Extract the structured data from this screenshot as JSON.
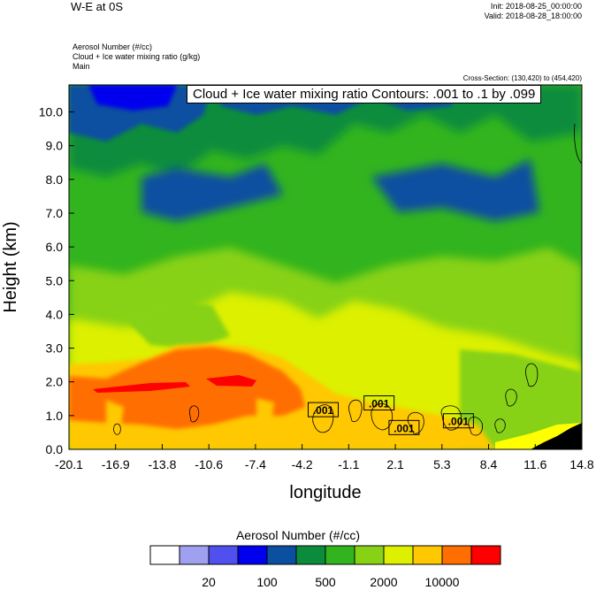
{
  "header": {
    "title": "W-E at 0S",
    "init": "Init: 2018-08-25_00:00:00",
    "valid": "Valid: 2018-08-28_18:00:00",
    "field_lines": [
      "Aerosol Number   (#/cc)",
      "Cloud + Ice water mixing ratio   (g/kg)",
      "Main"
    ],
    "cross_section": "Cross-Section: (130,420) to (454,420)",
    "contour_label": "Cloud + Ice water mixing ratio Contours: .001 to .1 by .099"
  },
  "chart_data": {
    "type": "heatmap",
    "xlabel": "longitude",
    "ylabel": "Height (km)",
    "xlim": [
      -20.1,
      14.8
    ],
    "ylim": [
      0.0,
      10.8
    ],
    "x_ticks": [
      "-20.1",
      "-16.9",
      "-13.8",
      "-10.6",
      "-7.4",
      "-4.2",
      "-1.1",
      "2.1",
      "5.3",
      "8.4",
      "11.6",
      "14.8"
    ],
    "y_ticks": [
      "0.0",
      "1.0",
      "2.0",
      "3.0",
      "4.0",
      "5.0",
      "6.0",
      "7.0",
      "8.0",
      "9.0",
      "10.0"
    ],
    "y_tick_values": [
      0,
      1,
      2,
      3,
      4,
      5,
      6,
      7,
      8,
      9,
      10
    ],
    "colorbar": {
      "title": "Aerosol Number  (#/cc)",
      "colors": [
        "#ffffff",
        "#a0a0f0",
        "#5050ee",
        "#0000ee",
        "#0a4fa0",
        "#0a8c3c",
        "#32b41e",
        "#87d214",
        "#dcf000",
        "#ffc800",
        "#ff6e00",
        "#ff0000"
      ],
      "labels": [
        "20",
        "100",
        "500",
        "2000",
        "10000"
      ],
      "label_boundary_index": [
        2,
        4,
        6,
        8,
        10
      ]
    },
    "contour_labels": [
      {
        "text": ".001",
        "lon": -2.8,
        "height": 1.15
      },
      {
        "text": ".001",
        "lon": 1.0,
        "height": 1.35
      },
      {
        "text": ".001",
        "lon": 2.7,
        "height": 0.62
      },
      {
        "text": ".001",
        "lon": 6.4,
        "height": 0.82
      }
    ],
    "terrain_color": "#000000"
  }
}
